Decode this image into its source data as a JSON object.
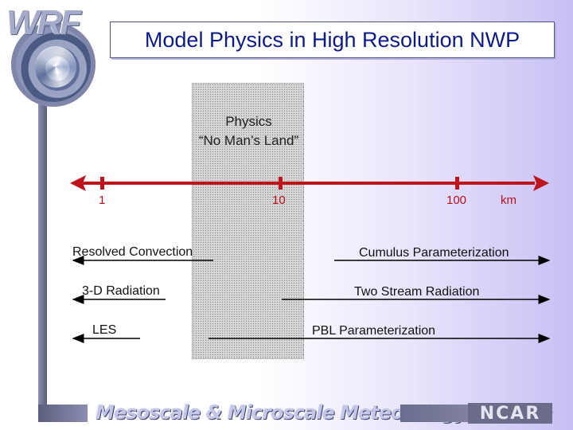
{
  "logo": {
    "text": "WRF"
  },
  "title": "Model Physics in High Resolution NWP",
  "no_mans_land": {
    "line1": "Physics",
    "line2": "“No Man’s Land”"
  },
  "scale": {
    "ticks": [
      "1",
      "10",
      "100"
    ],
    "unit": "km",
    "color": "#c0141c"
  },
  "processes": {
    "resolved_convection": "Resolved  Convection",
    "cumulus": "Cumulus Parameterization",
    "radiation_3d": "3-D Radiation",
    "two_stream": "Two Stream Radiation",
    "les": "LES",
    "pbl": "PBL Parameterization"
  },
  "footer": {
    "division": "Mesoscale & Microscale Meteorology Division",
    "org": "NCAR"
  }
}
